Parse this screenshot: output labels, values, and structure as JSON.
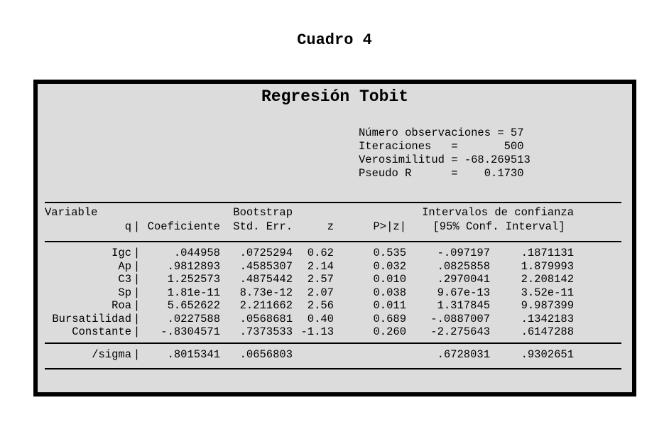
{
  "caption": "Cuadro 4",
  "panel": {
    "title": "Regresión Tobit",
    "background_color": "#dcdcdc",
    "border_color": "#000000",
    "stats": [
      "Número observaciones = 57",
      "Iteraciones   =       500",
      "Verosimilitud = -68.269513",
      "Pseudo R      =    0.1730"
    ]
  },
  "table": {
    "pipe": "|",
    "header_row1": {
      "variable": "Variable",
      "bootstrap": "Bootstrap",
      "ci_title": "Intervalos de confianza"
    },
    "header_row2": {
      "depvar": "q",
      "coef": "Coeficiente",
      "stderr": "Std. Err.",
      "z": "z",
      "p": "P>|z|",
      "ci": "[95% Conf. Interval]"
    },
    "rows": [
      {
        "variable": "Igc",
        "coef": ".044958",
        "stderr": ".0725294",
        "z": "0.62",
        "p": "0.535",
        "ci_low": "-.097197",
        "ci_high": ".1871131"
      },
      {
        "variable": "Ap",
        "coef": ".9812893",
        "stderr": ".4585307",
        "z": "2.14",
        "p": "0.032",
        "ci_low": ".0825858",
        "ci_high": "1.879993"
      },
      {
        "variable": "C3",
        "coef": "1.252573",
        "stderr": ".4875442",
        "z": "2.57",
        "p": "0.010",
        "ci_low": ".2970041",
        "ci_high": "2.208142"
      },
      {
        "variable": "Sp",
        "coef": "1.81e-11",
        "stderr": "8.73e-12",
        "z": "2.07",
        "p": "0.038",
        "ci_low": "9.67e-13",
        "ci_high": "3.52e-11"
      },
      {
        "variable": "Roa",
        "coef": "5.652622",
        "stderr": "2.211662",
        "z": "2.56",
        "p": "0.011",
        "ci_low": "1.317845",
        "ci_high": "9.987399"
      },
      {
        "variable": "Bursatilidad",
        "coef": ".0227588",
        "stderr": ".0568681",
        "z": "0.40",
        "p": "0.689",
        "ci_low": "-.0887007",
        "ci_high": ".1342183"
      },
      {
        "variable": "Constante",
        "coef": "-.8304571",
        "stderr": ".7373533",
        "z": "-1.13",
        "p": "0.260",
        "ci_low": "-2.275643",
        "ci_high": ".6147288"
      }
    ],
    "sigma_row": {
      "variable": "/sigma",
      "coef": ".8015341",
      "stderr": ".0656803",
      "z": "",
      "p": "",
      "ci_low": ".6728031",
      "ci_high": ".9302651"
    }
  }
}
